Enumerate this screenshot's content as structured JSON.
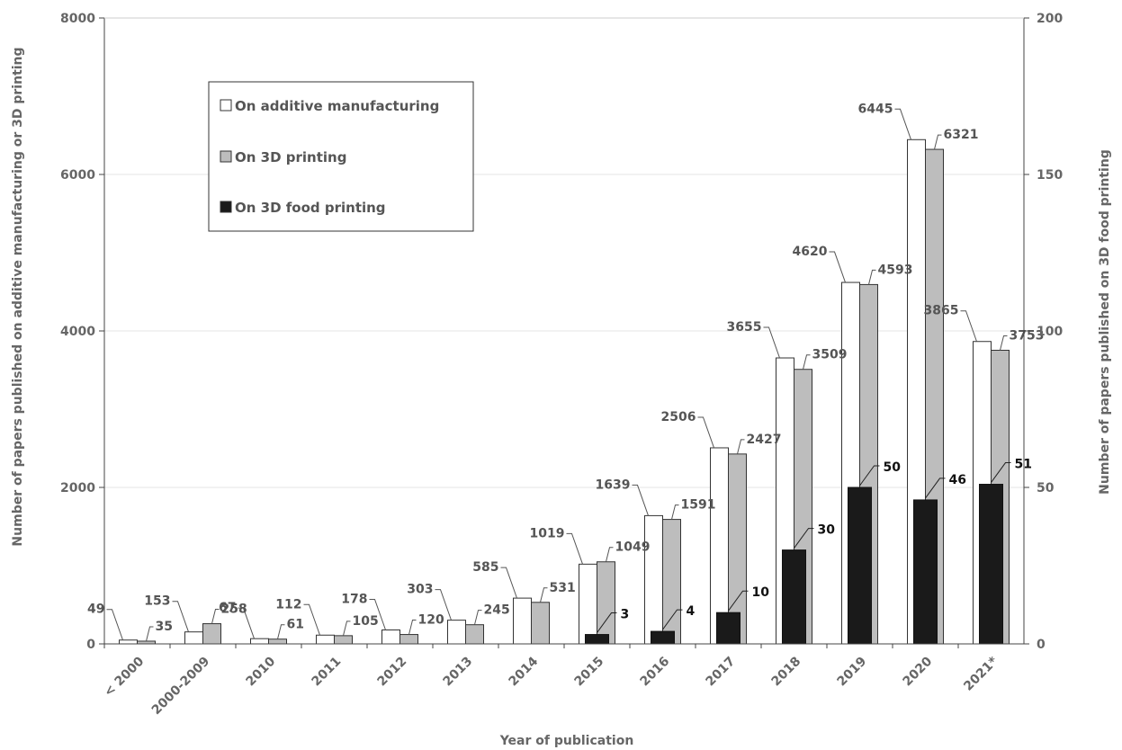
{
  "chart_data": {
    "type": "bar",
    "categories": [
      "< 2000",
      "2000-2009",
      "2010",
      "2011",
      "2012",
      "2013",
      "2014",
      "2015",
      "2016",
      "2017",
      "2018",
      "2019",
      "2020",
      "2021*"
    ],
    "series": [
      {
        "name": "On additive manufacturing",
        "axis": "left",
        "color": "#ffffff",
        "values": [
          49,
          153,
          67,
          112,
          178,
          303,
          585,
          1019,
          1639,
          2506,
          3655,
          4620,
          6445,
          3865
        ]
      },
      {
        "name": "On 3D printing",
        "axis": "left",
        "color": "#bdbdbd",
        "values": [
          35,
          258,
          61,
          105,
          120,
          245,
          531,
          1049,
          1591,
          2427,
          3509,
          4593,
          6321,
          3753
        ]
      },
      {
        "name": "On 3D food printing",
        "axis": "right",
        "color": "#1a1a1a",
        "values": [
          null,
          null,
          null,
          null,
          null,
          null,
          null,
          3,
          4,
          10,
          30,
          50,
          46,
          51
        ]
      }
    ],
    "xlabel": "Year of publication",
    "ylabel": "Number of papers published on additive manufacturing or 3D printing",
    "y2label": "Number of papers published on 3D food printing",
    "ylim": [
      0,
      8000
    ],
    "yticks": [
      0,
      2000,
      4000,
      6000,
      8000
    ],
    "y2lim": [
      0,
      200
    ],
    "y2ticks": [
      0,
      50,
      100,
      150,
      200
    ],
    "grid": true,
    "legend_position": "top-left"
  }
}
